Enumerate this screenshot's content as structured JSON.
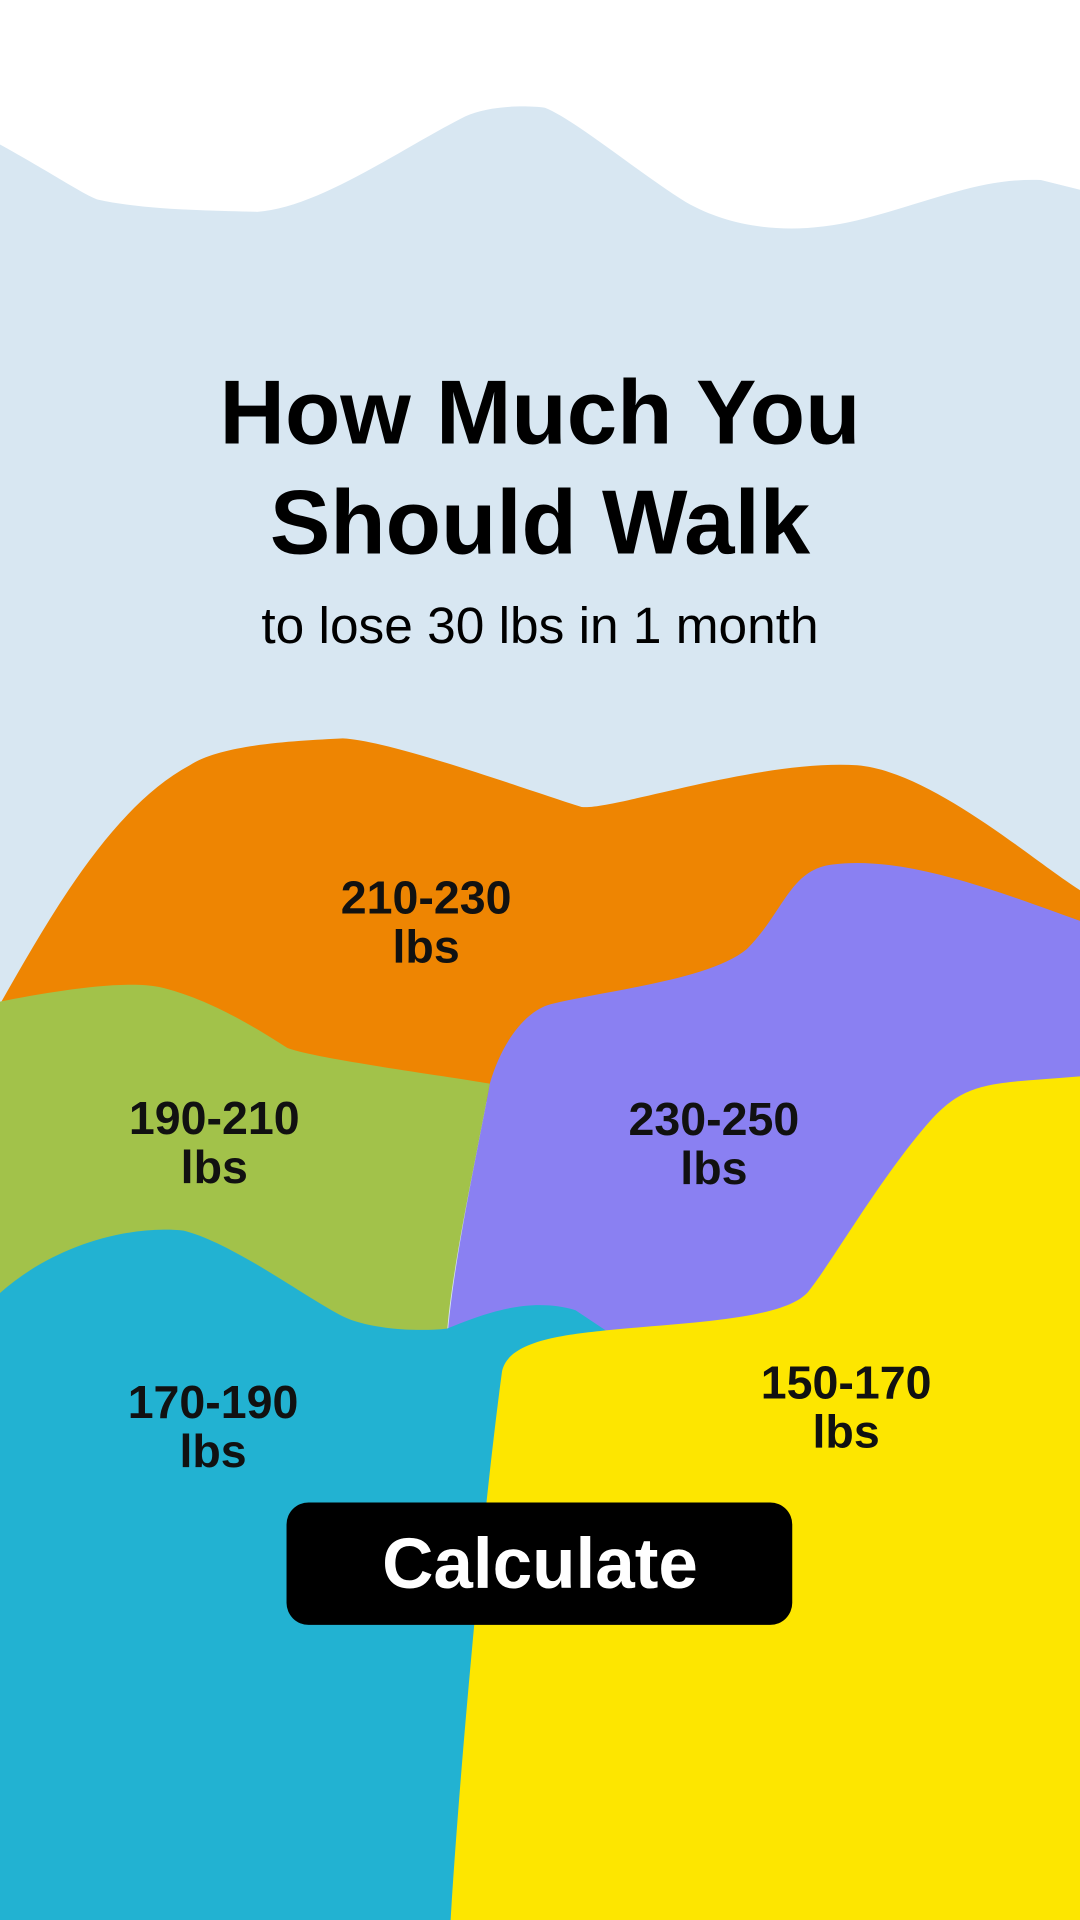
{
  "header": {
    "title": [
      "How Much You",
      "Should Walk"
    ],
    "subtitle": "to lose 30 lbs in 1 month"
  },
  "regions": [
    {
      "label": [
        "210-230",
        "lbs"
      ]
    },
    {
      "label": [
        "190-210",
        "lbs"
      ]
    },
    {
      "label": [
        "230-250",
        "lbs"
      ]
    },
    {
      "label": [
        "170-190",
        "lbs"
      ]
    },
    {
      "label": [
        "150-170",
        "lbs"
      ]
    }
  ],
  "button": {
    "label": "Calculate"
  }
}
